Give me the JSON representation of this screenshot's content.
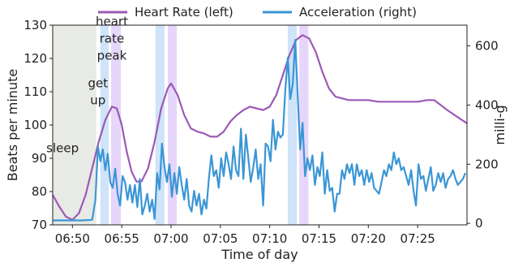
{
  "chart_data": {
    "type": "line",
    "xlabel": "Time of day",
    "ylabel_left": "Beats per minute",
    "ylabel_right": "milli-g",
    "x_range": [
      "06:48",
      "07:30"
    ],
    "ylim_left": [
      70,
      130
    ],
    "ylim_right": [
      -5,
      670
    ],
    "x_ticks": [
      "06:50",
      "06:55",
      "07:00",
      "07:05",
      "07:10",
      "07:15",
      "07:20",
      "07:25"
    ],
    "x_tick_labels": [
      "06:50",
      "06:55",
      "07:00",
      "07:05",
      "07:10",
      "07:15",
      "07:20",
      "07:25"
    ],
    "y_ticks_left": [
      70,
      80,
      90,
      100,
      110,
      120,
      130
    ],
    "y_ticks_right": [
      0,
      200,
      400,
      600
    ],
    "legend": {
      "placement": "top-center",
      "entries": [
        "Heart Rate (left)",
        "Acceleration (right)"
      ]
    },
    "annotations": [
      {
        "text_lines": [
          "sleep"
        ],
        "x": "06:49:00",
        "y": 93
      },
      {
        "text_lines": [
          "get",
          "up"
        ],
        "x": "06:52:35",
        "y": 110
      },
      {
        "text_lines": [
          "heart",
          "rate",
          "peak"
        ],
        "x": "06:54:00",
        "y": 126
      }
    ],
    "shaded_regions": [
      {
        "kind": "sleep",
        "start": "06:48:00",
        "end": "06:52:25"
      },
      {
        "kind": "acceleration",
        "start": "06:52:50",
        "end": "06:53:40"
      },
      {
        "kind": "heart-rate",
        "start": "06:53:55",
        "end": "06:54:55"
      },
      {
        "kind": "acceleration",
        "start": "06:58:25",
        "end": "06:59:20"
      },
      {
        "kind": "heart-rate",
        "start": "06:59:40",
        "end": "07:00:35"
      },
      {
        "kind": "acceleration",
        "start": "07:11:50",
        "end": "07:12:45"
      },
      {
        "kind": "heart-rate",
        "start": "07:13:00",
        "end": "07:13:55"
      }
    ],
    "series": [
      {
        "name": "Heart Rate (left)",
        "axis": "left",
        "color": "#9b59b6",
        "points": [
          [
            "06:48:00",
            79
          ],
          [
            "06:48:40",
            75.5
          ],
          [
            "06:49:20",
            72.5
          ],
          [
            "06:50:00",
            71.5
          ],
          [
            "06:50:40",
            73.5
          ],
          [
            "06:51:20",
            79
          ],
          [
            "06:52:00",
            87
          ],
          [
            "06:52:40",
            95
          ],
          [
            "06:53:20",
            101.5
          ],
          [
            "06:54:00",
            105.5
          ],
          [
            "06:54:30",
            105
          ],
          [
            "06:55:00",
            100
          ],
          [
            "06:55:30",
            92
          ],
          [
            "06:56:00",
            86
          ],
          [
            "06:56:30",
            83
          ],
          [
            "06:57:00",
            83
          ],
          [
            "06:57:40",
            87
          ],
          [
            "06:58:20",
            95
          ],
          [
            "06:59:00",
            105
          ],
          [
            "06:59:40",
            111
          ],
          [
            "07:00:00",
            112.5
          ],
          [
            "07:00:40",
            109
          ],
          [
            "07:01:20",
            103
          ],
          [
            "07:02:00",
            99
          ],
          [
            "07:02:40",
            98
          ],
          [
            "07:03:20",
            97.5
          ],
          [
            "07:04:00",
            96.5
          ],
          [
            "07:04:40",
            96.5
          ],
          [
            "07:05:20",
            98
          ],
          [
            "07:06:00",
            101
          ],
          [
            "07:06:40",
            103
          ],
          [
            "07:07:20",
            104.5
          ],
          [
            "07:08:00",
            105.5
          ],
          [
            "07:08:40",
            105
          ],
          [
            "07:09:20",
            104.5
          ],
          [
            "07:10:00",
            105.5
          ],
          [
            "07:10:40",
            109
          ],
          [
            "07:11:20",
            115
          ],
          [
            "07:12:00",
            121
          ],
          [
            "07:12:40",
            125.5
          ],
          [
            "07:13:20",
            127
          ],
          [
            "07:14:00",
            126
          ],
          [
            "07:14:40",
            122
          ],
          [
            "07:15:20",
            116
          ],
          [
            "07:16:00",
            111
          ],
          [
            "07:16:40",
            108.5
          ],
          [
            "07:17:20",
            108
          ],
          [
            "07:18:00",
            107.5
          ],
          [
            "07:19:00",
            107.5
          ],
          [
            "07:20:00",
            107.5
          ],
          [
            "07:21:00",
            107
          ],
          [
            "07:22:00",
            107
          ],
          [
            "07:23:00",
            107
          ],
          [
            "07:24:00",
            107
          ],
          [
            "07:25:00",
            107
          ],
          [
            "07:26:00",
            107.5
          ],
          [
            "07:26:40",
            107.5
          ],
          [
            "07:27:20",
            106
          ],
          [
            "07:28:00",
            104.5
          ],
          [
            "07:29:00",
            102.5
          ],
          [
            "07:30:00",
            100.5
          ]
        ]
      },
      {
        "name": "Acceleration (right)",
        "axis": "right",
        "color": "#3a96d6",
        "points": [
          [
            "06:48:00",
            10
          ],
          [
            "06:49:00",
            10
          ],
          [
            "06:50:00",
            10
          ],
          [
            "06:51:00",
            10
          ],
          [
            "06:52:00",
            12
          ],
          [
            "06:52:20",
            80
          ],
          [
            "06:52:35",
            260
          ],
          [
            "06:52:50",
            210
          ],
          [
            "06:53:05",
            250
          ],
          [
            "06:53:20",
            180
          ],
          [
            "06:53:35",
            235
          ],
          [
            "06:53:50",
            140
          ],
          [
            "06:54:05",
            120
          ],
          [
            "06:54:20",
            185
          ],
          [
            "06:54:35",
            100
          ],
          [
            "06:54:50",
            60
          ],
          [
            "06:55:05",
            160
          ],
          [
            "06:55:20",
            140
          ],
          [
            "06:55:35",
            80
          ],
          [
            "06:55:50",
            130
          ],
          [
            "06:56:05",
            70
          ],
          [
            "06:56:20",
            130
          ],
          [
            "06:56:35",
            55
          ],
          [
            "06:56:50",
            150
          ],
          [
            "06:57:05",
            30
          ],
          [
            "06:57:20",
            60
          ],
          [
            "06:57:35",
            100
          ],
          [
            "06:57:50",
            40
          ],
          [
            "06:58:05",
            80
          ],
          [
            "06:58:20",
            15
          ],
          [
            "06:58:35",
            170
          ],
          [
            "06:58:50",
            115
          ],
          [
            "06:59:05",
            270
          ],
          [
            "06:59:20",
            190
          ],
          [
            "06:59:35",
            140
          ],
          [
            "06:59:50",
            200
          ],
          [
            "07:00:05",
            90
          ],
          [
            "07:00:20",
            170
          ],
          [
            "07:00:35",
            100
          ],
          [
            "07:00:50",
            190
          ],
          [
            "07:01:05",
            130
          ],
          [
            "07:01:20",
            80
          ],
          [
            "07:01:35",
            150
          ],
          [
            "07:01:50",
            60
          ],
          [
            "07:02:05",
            40
          ],
          [
            "07:02:20",
            110
          ],
          [
            "07:02:35",
            60
          ],
          [
            "07:02:50",
            100
          ],
          [
            "07:03:05",
            30
          ],
          [
            "07:03:20",
            80
          ],
          [
            "07:03:35",
            50
          ],
          [
            "07:03:50",
            150
          ],
          [
            "07:04:05",
            230
          ],
          [
            "07:04:20",
            160
          ],
          [
            "07:04:35",
            180
          ],
          [
            "07:04:50",
            120
          ],
          [
            "07:05:05",
            220
          ],
          [
            "07:05:20",
            160
          ],
          [
            "07:05:35",
            240
          ],
          [
            "07:05:50",
            200
          ],
          [
            "07:06:05",
            150
          ],
          [
            "07:06:20",
            260
          ],
          [
            "07:06:35",
            180
          ],
          [
            "07:06:50",
            160
          ],
          [
            "07:07:05",
            320
          ],
          [
            "07:07:20",
            150
          ],
          [
            "07:07:35",
            300
          ],
          [
            "07:07:50",
            220
          ],
          [
            "07:08:05",
            140
          ],
          [
            "07:08:20",
            190
          ],
          [
            "07:08:35",
            250
          ],
          [
            "07:08:50",
            150
          ],
          [
            "07:09:05",
            200
          ],
          [
            "07:09:20",
            60
          ],
          [
            "07:09:35",
            270
          ],
          [
            "07:09:50",
            260
          ],
          [
            "07:10:05",
            210
          ],
          [
            "07:10:20",
            350
          ],
          [
            "07:10:35",
            250
          ],
          [
            "07:10:50",
            310
          ],
          [
            "07:11:05",
            290
          ],
          [
            "07:11:20",
            300
          ],
          [
            "07:11:35",
            450
          ],
          [
            "07:11:50",
            560
          ],
          [
            "07:12:05",
            420
          ],
          [
            "07:12:20",
            470
          ],
          [
            "07:12:35",
            620
          ],
          [
            "07:12:50",
            440
          ],
          [
            "07:13:05",
            250
          ],
          [
            "07:13:20",
            340
          ],
          [
            "07:13:35",
            160
          ],
          [
            "07:13:50",
            220
          ],
          [
            "07:14:05",
            180
          ],
          [
            "07:14:20",
            230
          ],
          [
            "07:14:35",
            130
          ],
          [
            "07:14:50",
            190
          ],
          [
            "07:15:05",
            160
          ],
          [
            "07:15:20",
            240
          ],
          [
            "07:15:35",
            100
          ],
          [
            "07:15:50",
            180
          ],
          [
            "07:16:05",
            110
          ],
          [
            "07:16:20",
            120
          ],
          [
            "07:16:35",
            40
          ],
          [
            "07:16:50",
            100
          ],
          [
            "07:17:05",
            100
          ],
          [
            "07:17:20",
            180
          ],
          [
            "07:17:35",
            150
          ],
          [
            "07:17:50",
            200
          ],
          [
            "07:18:05",
            170
          ],
          [
            "07:18:20",
            200
          ],
          [
            "07:18:35",
            130
          ],
          [
            "07:18:50",
            200
          ],
          [
            "07:19:05",
            160
          ],
          [
            "07:19:20",
            180
          ],
          [
            "07:19:35",
            130
          ],
          [
            "07:19:50",
            180
          ],
          [
            "07:20:05",
            140
          ],
          [
            "07:20:20",
            170
          ],
          [
            "07:20:35",
            120
          ],
          [
            "07:20:50",
            110
          ],
          [
            "07:21:05",
            100
          ],
          [
            "07:21:20",
            140
          ],
          [
            "07:21:35",
            180
          ],
          [
            "07:21:50",
            160
          ],
          [
            "07:22:05",
            200
          ],
          [
            "07:22:20",
            180
          ],
          [
            "07:22:35",
            240
          ],
          [
            "07:22:50",
            200
          ],
          [
            "07:23:05",
            220
          ],
          [
            "07:23:20",
            180
          ],
          [
            "07:23:35",
            190
          ],
          [
            "07:23:50",
            160
          ],
          [
            "07:24:05",
            130
          ],
          [
            "07:24:20",
            180
          ],
          [
            "07:24:35",
            110
          ],
          [
            "07:24:50",
            60
          ],
          [
            "07:25:05",
            200
          ],
          [
            "07:25:20",
            150
          ],
          [
            "07:25:35",
            160
          ],
          [
            "07:25:50",
            110
          ],
          [
            "07:26:05",
            150
          ],
          [
            "07:26:20",
            190
          ],
          [
            "07:26:35",
            110
          ],
          [
            "07:26:50",
            130
          ],
          [
            "07:27:05",
            170
          ],
          [
            "07:27:20",
            140
          ],
          [
            "07:27:35",
            170
          ],
          [
            "07:27:50",
            120
          ],
          [
            "07:28:05",
            150
          ],
          [
            "07:28:20",
            160
          ],
          [
            "07:28:35",
            180
          ],
          [
            "07:28:50",
            150
          ],
          [
            "07:29:05",
            130
          ],
          [
            "07:29:20",
            140
          ],
          [
            "07:29:35",
            150
          ],
          [
            "07:29:50",
            170
          ]
        ]
      }
    ],
    "colors": {
      "sleep_region": "#e8eae6",
      "acceleration_region": "#cfe3f9",
      "heart_rate_region": "#e7d6fb",
      "axes": "#222222"
    }
  }
}
